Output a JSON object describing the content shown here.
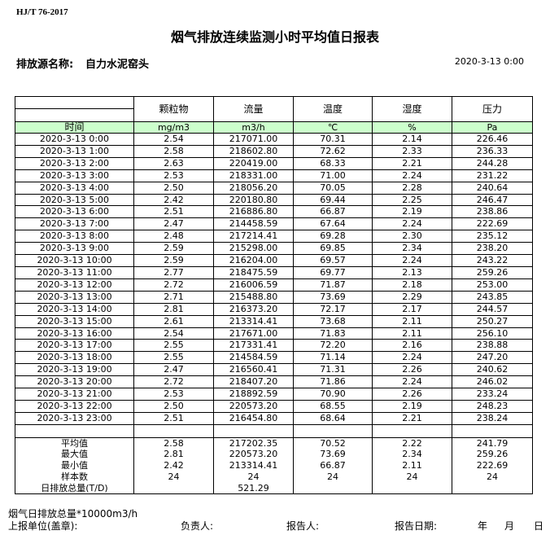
{
  "standard": "HJ/T  76-2017",
  "title": "烟气排放连续监测小时平均值日报表",
  "source_label": "排放源名称:",
  "source_name": "自力水泥窑头",
  "report_datetime": "2020-3-13 0:00",
  "columns": [
    "颗粒物",
    "流量",
    "温度",
    "湿度",
    "压力"
  ],
  "time_header": "时间",
  "units": [
    "mg/m3",
    "m3/h",
    "℃",
    "%",
    "Pa"
  ],
  "rows": [
    [
      "2020-3-13 0:00",
      "2.54",
      "217071.00",
      "70.31",
      "2.14",
      "226.46"
    ],
    [
      "2020-3-13 1:00",
      "2.58",
      "218602.80",
      "72.62",
      "2.33",
      "236.33"
    ],
    [
      "2020-3-13 2:00",
      "2.63",
      "220419.00",
      "68.33",
      "2.21",
      "244.28"
    ],
    [
      "2020-3-13 3:00",
      "2.53",
      "218331.00",
      "71.00",
      "2.24",
      "231.22"
    ],
    [
      "2020-3-13 4:00",
      "2.50",
      "218056.20",
      "70.05",
      "2.28",
      "240.64"
    ],
    [
      "2020-3-13 5:00",
      "2.42",
      "220180.80",
      "69.44",
      "2.25",
      "246.47"
    ],
    [
      "2020-3-13 6:00",
      "2.51",
      "216886.80",
      "66.87",
      "2.19",
      "238.86"
    ],
    [
      "2020-3-13 7:00",
      "2.47",
      "214458.59",
      "67.64",
      "2.24",
      "222.69"
    ],
    [
      "2020-3-13 8:00",
      "2.48",
      "217214.41",
      "69.28",
      "2.30",
      "235.12"
    ],
    [
      "2020-3-13 9:00",
      "2.59",
      "215298.00",
      "69.85",
      "2.34",
      "238.20"
    ],
    [
      "2020-3-13 10:00",
      "2.59",
      "216204.00",
      "69.57",
      "2.24",
      "243.22"
    ],
    [
      "2020-3-13 11:00",
      "2.77",
      "218475.59",
      "69.77",
      "2.13",
      "259.26"
    ],
    [
      "2020-3-13 12:00",
      "2.72",
      "216006.59",
      "71.87",
      "2.18",
      "253.00"
    ],
    [
      "2020-3-13 13:00",
      "2.71",
      "215488.80",
      "73.69",
      "2.29",
      "243.85"
    ],
    [
      "2020-3-13 14:00",
      "2.81",
      "216373.20",
      "72.17",
      "2.17",
      "244.57"
    ],
    [
      "2020-3-13 15:00",
      "2.61",
      "213314.41",
      "73.68",
      "2.11",
      "250.27"
    ],
    [
      "2020-3-13 16:00",
      "2.54",
      "217671.00",
      "71.83",
      "2.11",
      "256.10"
    ],
    [
      "2020-3-13 17:00",
      "2.55",
      "217331.41",
      "72.20",
      "2.16",
      "238.88"
    ],
    [
      "2020-3-13 18:00",
      "2.55",
      "214584.59",
      "71.14",
      "2.24",
      "247.20"
    ],
    [
      "2020-3-13 19:00",
      "2.47",
      "216560.41",
      "71.31",
      "2.26",
      "240.62"
    ],
    [
      "2020-3-13 20:00",
      "2.72",
      "218407.20",
      "71.86",
      "2.24",
      "246.02"
    ],
    [
      "2020-3-13 21:00",
      "2.53",
      "218892.59",
      "70.90",
      "2.26",
      "233.24"
    ],
    [
      "2020-3-13 22:00",
      "2.50",
      "220573.20",
      "68.55",
      "2.19",
      "248.23"
    ],
    [
      "2020-3-13 23:00",
      "2.51",
      "216454.80",
      "68.64",
      "2.21",
      "238.24"
    ]
  ],
  "summary": [
    [
      "平均值",
      "2.58",
      "217202.35",
      "70.52",
      "2.22",
      "241.79"
    ],
    [
      "最大值",
      "2.81",
      "220573.20",
      "73.69",
      "2.34",
      "259.26"
    ],
    [
      "最小值",
      "2.42",
      "213314.41",
      "66.87",
      "2.11",
      "222.69"
    ],
    [
      "样本数",
      "24",
      "24",
      "24",
      "24",
      "24"
    ],
    [
      "日排放总量(T/D)",
      "",
      "521.29",
      "",
      "",
      ""
    ]
  ],
  "footer": {
    "note": "烟气日排放总量*10000m3/h",
    "unit_label": "上报单位(盖章):",
    "manager_label": "负责人:",
    "reporter_label": "报告人:",
    "date_label": "报告日期:",
    "year": "年",
    "month": "月",
    "day": "日"
  },
  "colors": {
    "unit_row_bg": "#ccffcc"
  }
}
